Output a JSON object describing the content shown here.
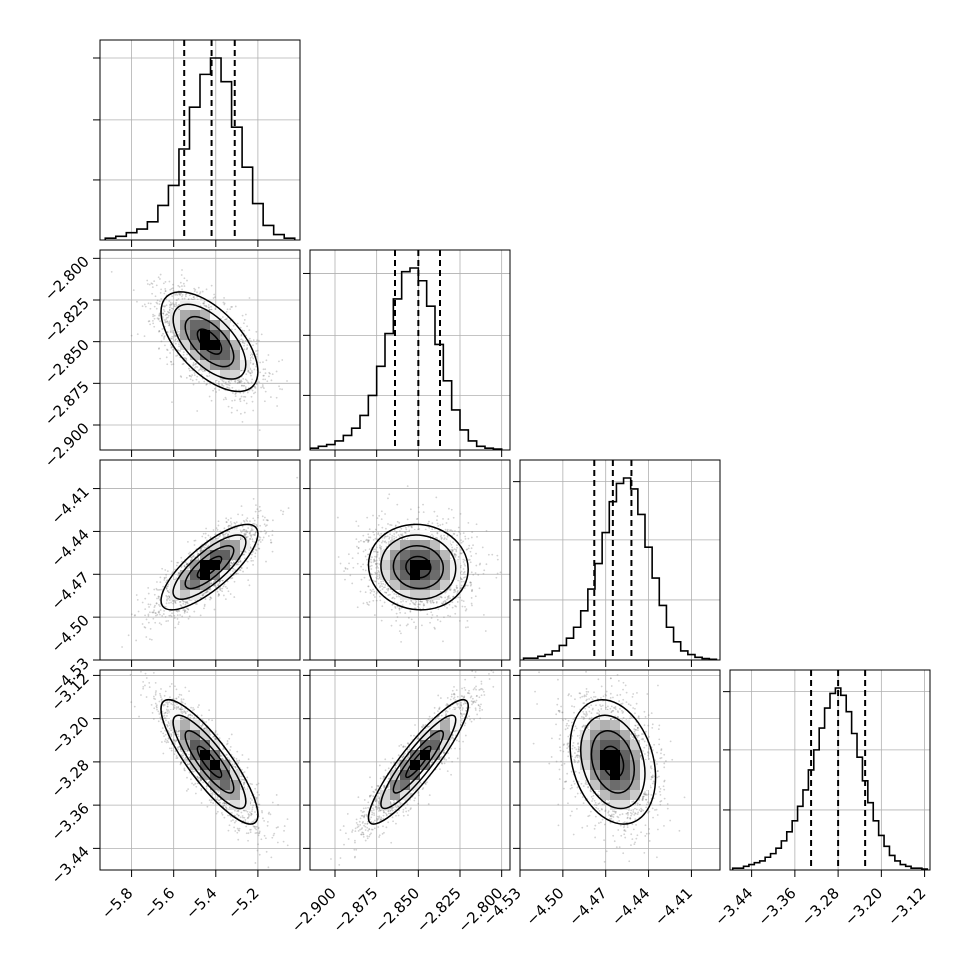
{
  "chart_data": {
    "type": "corner",
    "parameters": [
      {
        "index": 0,
        "range": [
          -5.95,
          -5.0
        ],
        "ticks": [
          -5.8,
          -5.6,
          -5.4,
          -5.2
        ],
        "tick_labels": [
          "−5.8",
          "−5.6",
          "−5.4",
          "−5.2"
        ],
        "quantiles": [
          -5.55,
          -5.42,
          -5.31
        ],
        "hist_bins": [
          -5.9,
          -5.85,
          -5.8,
          -5.75,
          -5.7,
          -5.65,
          -5.6,
          -5.55,
          -5.5,
          -5.45,
          -5.4,
          -5.35,
          -5.3,
          -5.25,
          -5.2,
          -5.15,
          -5.1,
          -5.05
        ],
        "hist_heights": [
          0.01,
          0.02,
          0.04,
          0.06,
          0.1,
          0.19,
          0.3,
          0.5,
          0.73,
          0.91,
          1.0,
          0.87,
          0.62,
          0.4,
          0.2,
          0.08,
          0.03,
          0.01
        ],
        "hist_grid_counts": [
          0.33,
          0.66,
          1.0
        ]
      },
      {
        "index": 1,
        "range": [
          -2.915,
          -2.795
        ],
        "ticks": [
          -2.9,
          -2.875,
          -2.85,
          -2.825,
          -2.8
        ],
        "tick_labels": [
          "−2.900",
          "−2.875",
          "−2.850",
          "−2.825",
          "−2.800"
        ],
        "quantiles": [
          -2.864,
          -2.85,
          -2.837
        ],
        "hist_bins": [
          -2.9125,
          -2.9075,
          -2.9025,
          -2.8975,
          -2.8925,
          -2.8875,
          -2.8825,
          -2.8775,
          -2.8725,
          -2.8675,
          -2.8625,
          -2.8575,
          -2.8525,
          -2.8475,
          -2.8425,
          -2.8375,
          -2.8325,
          -2.8275,
          -2.8225,
          -2.8175,
          -2.8125,
          -2.8075,
          -2.8025
        ],
        "hist_heights": [
          0.01,
          0.02,
          0.03,
          0.05,
          0.08,
          0.12,
          0.19,
          0.3,
          0.46,
          0.64,
          0.83,
          0.98,
          1.0,
          0.93,
          0.79,
          0.58,
          0.38,
          0.22,
          0.11,
          0.05,
          0.02,
          0.01,
          0.005
        ],
        "hist_grid_counts": [
          0.3,
          0.63,
          0.97
        ]
      },
      {
        "index": 2,
        "range": [
          -4.53,
          -4.39
        ],
        "ticks": [
          -4.53,
          -4.5,
          -4.47,
          -4.44,
          -4.41
        ],
        "tick_labels": [
          "−4.53",
          "−4.50",
          "−4.47",
          "−4.44",
          "−4.41"
        ],
        "quantiles": [
          -4.478,
          -4.465,
          -4.452
        ],
        "hist_bins": [
          -4.525,
          -4.52,
          -4.515,
          -4.51,
          -4.505,
          -4.5,
          -4.495,
          -4.49,
          -4.485,
          -4.48,
          -4.475,
          -4.47,
          -4.465,
          -4.46,
          -4.455,
          -4.45,
          -4.445,
          -4.44,
          -4.435,
          -4.43,
          -4.425,
          -4.42,
          -4.415,
          -4.41,
          -4.405,
          -4.4,
          -4.395
        ],
        "hist_heights": [
          0.01,
          0.01,
          0.02,
          0.03,
          0.05,
          0.08,
          0.12,
          0.18,
          0.27,
          0.39,
          0.53,
          0.7,
          0.87,
          0.97,
          1.0,
          0.94,
          0.8,
          0.62,
          0.45,
          0.3,
          0.18,
          0.1,
          0.05,
          0.03,
          0.015,
          0.008,
          0.004
        ],
        "hist_grid_counts": [
          0.33,
          0.66,
          0.98
        ]
      },
      {
        "index": 3,
        "range": [
          -3.48,
          -3.11
        ],
        "ticks": [
          -3.44,
          -3.36,
          -3.28,
          -3.2,
          -3.12
        ],
        "tick_labels": [
          "−3.44",
          "−3.36",
          "−3.28",
          "−3.20",
          "−3.12"
        ],
        "quantiles": [
          -3.33,
          -3.28,
          -3.23
        ],
        "hist_bins": [
          -3.47,
          -3.46,
          -3.45,
          -3.44,
          -3.43,
          -3.42,
          -3.41,
          -3.4,
          -3.39,
          -3.38,
          -3.37,
          -3.36,
          -3.35,
          -3.34,
          -3.33,
          -3.32,
          -3.31,
          -3.3,
          -3.29,
          -3.28,
          -3.27,
          -3.26,
          -3.25,
          -3.24,
          -3.23,
          -3.22,
          -3.21,
          -3.2,
          -3.19,
          -3.18,
          -3.17,
          -3.16,
          -3.15,
          -3.14,
          -3.13,
          -3.12
        ],
        "hist_heights": [
          0.01,
          0.01,
          0.02,
          0.03,
          0.04,
          0.05,
          0.07,
          0.09,
          0.12,
          0.16,
          0.21,
          0.27,
          0.35,
          0.44,
          0.55,
          0.66,
          0.78,
          0.89,
          0.97,
          1.0,
          0.96,
          0.87,
          0.75,
          0.62,
          0.49,
          0.37,
          0.27,
          0.19,
          0.13,
          0.08,
          0.05,
          0.03,
          0.02,
          0.01,
          0.01,
          0.005
        ],
        "hist_grid_counts": [
          0.33,
          0.66,
          0.98
        ]
      }
    ],
    "means": [
      -5.43,
      -2.85,
      -4.465,
      -3.28
    ],
    "stds": [
      0.1,
      0.013,
      0.013,
      0.05
    ],
    "correlations": [
      [
        1.0,
        -0.6,
        0.78,
        -0.85
      ],
      [
        -0.6,
        1.0,
        -0.05,
        0.9
      ],
      [
        0.78,
        -0.05,
        1.0,
        -0.25
      ],
      [
        -0.85,
        0.9,
        -0.25,
        1.0
      ]
    ],
    "grid": true,
    "colors": {
      "scatter": "#7f7f7f",
      "contour": "#000000",
      "density": "#000000",
      "hist": "#000000",
      "grid": "#b0b0b0"
    }
  }
}
